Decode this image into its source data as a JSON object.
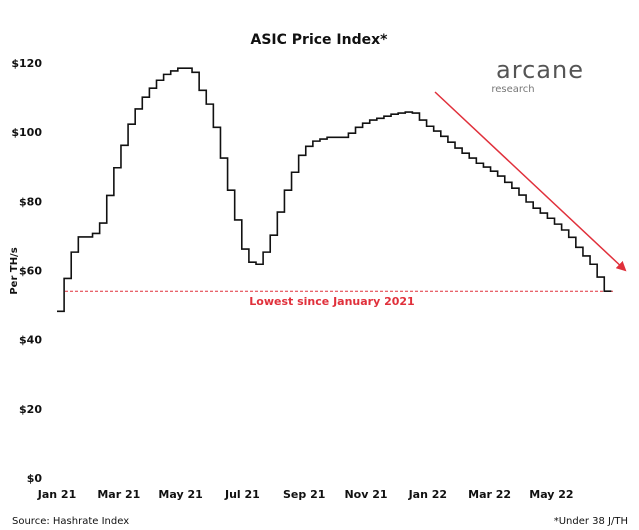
{
  "chart_data": {
    "type": "step",
    "title": "ASIC Price Index*",
    "y_label": "Per TH/s",
    "source": "Source: Hashrate Index",
    "footnote": "*Under 38 J/TH",
    "logo": {
      "name": "arcane",
      "sub": "research"
    },
    "color": "#111111",
    "x": [
      0,
      0.23,
      0.46,
      0.69,
      0.92,
      1.15,
      1.38,
      1.61,
      1.84,
      2.07,
      2.3,
      2.53,
      2.76,
      2.99,
      3.22,
      3.45,
      3.68,
      3.91,
      4.14,
      4.37,
      4.6,
      4.83,
      5.06,
      5.29,
      5.52,
      5.75,
      5.98,
      6.21,
      6.44,
      6.67,
      6.9,
      7.13,
      7.36,
      7.59,
      7.82,
      8.05,
      8.28,
      8.51,
      8.74,
      8.97,
      9.2,
      9.43,
      9.66,
      9.89,
      10.12,
      10.35,
      10.58,
      10.81,
      11.04,
      11.27,
      11.5,
      11.73,
      11.96,
      12.19,
      12.42,
      12.65,
      12.88,
      13.11,
      13.34,
      13.57,
      13.8,
      14.03,
      14.26,
      14.49,
      14.72,
      14.95,
      15.18,
      15.41,
      15.64,
      15.87,
      16.1,
      16.33,
      16.56,
      16.79,
      17.02,
      17.25,
      17.48,
      17.71,
      17.94
    ],
    "values": [
      48.5,
      58,
      65.6,
      70,
      70,
      71,
      74,
      82,
      90,
      96.5,
      102.6,
      107,
      110.4,
      113,
      115.3,
      117,
      118,
      118.8,
      118.8,
      117.6,
      112.4,
      108.4,
      101.7,
      92.8,
      83.5,
      74.9,
      66.5,
      62.7,
      62.1,
      65.6,
      70.5,
      77.2,
      83.5,
      88.7,
      93.6,
      96.2,
      97.7,
      98.3,
      98.8,
      98.8,
      98.8,
      100,
      101.7,
      102.9,
      103.8,
      104.3,
      104.9,
      105.5,
      105.8,
      106.1,
      105.8,
      103.8,
      102,
      100.6,
      99.1,
      97.4,
      95.7,
      94.2,
      92.8,
      91.3,
      90.2,
      89,
      87.6,
      85.8,
      84.1,
      82.1,
      80.1,
      78.3,
      76.9,
      75.4,
      73.7,
      72,
      69.9,
      67,
      64.5,
      62.1,
      58.4,
      54.3,
      54.3
    ],
    "xlim": [
      0,
      18.3
    ],
    "xticks": [
      {
        "value": 0,
        "label": "Jan 21"
      },
      {
        "value": 2,
        "label": "Mar 21"
      },
      {
        "value": 4,
        "label": "May 21"
      },
      {
        "value": 6,
        "label": "Jul 21"
      },
      {
        "value": 8,
        "label": "Sep 21"
      },
      {
        "value": 10,
        "label": "Nov 21"
      },
      {
        "value": 12,
        "label": "Jan 22"
      },
      {
        "value": 14,
        "label": "Mar 22"
      },
      {
        "value": 16,
        "label": "May 22"
      }
    ],
    "ylim": [
      0,
      120
    ],
    "yticks": [
      {
        "value": 0,
        "label": "$0"
      },
      {
        "value": 20,
        "label": "$20"
      },
      {
        "value": 40,
        "label": "$40"
      },
      {
        "value": 60,
        "label": "$60"
      },
      {
        "value": 80,
        "label": "$80"
      },
      {
        "value": 100,
        "label": "$100"
      },
      {
        "value": 120,
        "label": "$120"
      }
    ],
    "reference_line": {
      "value": 54.3,
      "label": "Lowest since January 2021",
      "color": "#e0303b"
    },
    "grid": false
  }
}
